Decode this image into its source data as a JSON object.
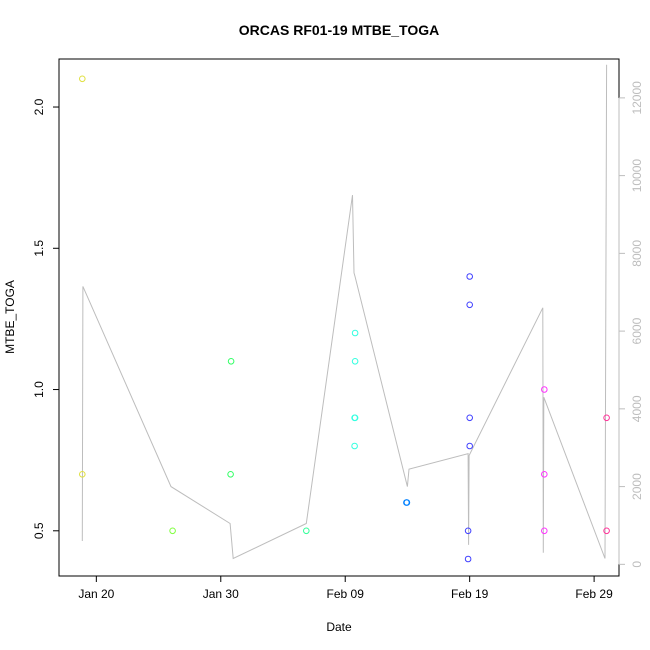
{
  "chart_data": {
    "type": "scatter",
    "title": "ORCAS RF01-19 MTBE_TOGA",
    "xlabel": "Date",
    "ylabel": "MTBE_TOGA",
    "xlim": [
      "2016-01-17",
      "2016-03-02"
    ],
    "ylim": [
      0.34,
      2.17
    ],
    "x_ticks": [
      {
        "date": "2016-01-20",
        "label": "Jan 20"
      },
      {
        "date": "2016-01-30",
        "label": "Jan 30"
      },
      {
        "date": "2016-02-09",
        "label": "Feb 09"
      },
      {
        "date": "2016-02-19",
        "label": "Feb 19"
      },
      {
        "date": "2016-02-29",
        "label": "Feb 29"
      }
    ],
    "y_ticks": [
      0.5,
      1.0,
      1.5,
      2.0
    ],
    "y_tick_labels": [
      "0.5",
      "1.0",
      "1.5",
      "2.0"
    ],
    "y2_lim": [
      -300,
      13000
    ],
    "y2_ticks": [
      0,
      2000,
      4000,
      6000,
      8000,
      10000,
      12000
    ],
    "y2_tick_labels": [
      "0",
      "2000",
      "4000",
      "6000",
      "8000",
      "10000",
      "12000"
    ],
    "grid": false,
    "colors": {
      "line": "#bdbdbd",
      "axis": "#000000",
      "right_axis": "#bdbdbd"
    },
    "points": [
      {
        "x": "2016-01-18T21:00",
        "y": 2.1,
        "color": "#e0e040"
      },
      {
        "x": "2016-01-18T21:00",
        "y": 0.7,
        "color": "#e0e040"
      },
      {
        "x": "2016-01-26T03:00",
        "y": 0.5,
        "color": "#80ff40"
      },
      {
        "x": "2016-01-30T20:00",
        "y": 1.1,
        "color": "#33ff66"
      },
      {
        "x": "2016-01-30T19:00",
        "y": 0.7,
        "color": "#33ff66"
      },
      {
        "x": "2016-02-05T21:00",
        "y": 0.5,
        "color": "#33ff99"
      },
      {
        "x": "2016-02-09T19:00",
        "y": 1.2,
        "color": "#33ffe0"
      },
      {
        "x": "2016-02-09T19:00",
        "y": 1.1,
        "color": "#33ffe0"
      },
      {
        "x": "2016-02-09T19:00",
        "y": 0.9,
        "color": "#33ffe0"
      },
      {
        "x": "2016-02-09T18:00",
        "y": 0.9,
        "color": "#33ffe0"
      },
      {
        "x": "2016-02-09T18:00",
        "y": 0.8,
        "color": "#33ffe0"
      },
      {
        "x": "2016-02-13T23:00",
        "y": 0.6,
        "color": "#0080ff"
      },
      {
        "x": "2016-02-13T22:00",
        "y": 0.6,
        "color": "#0080ff"
      },
      {
        "x": "2016-02-19T00:00",
        "y": 1.4,
        "color": "#4040ff"
      },
      {
        "x": "2016-02-19T00:00",
        "y": 1.3,
        "color": "#4040ff"
      },
      {
        "x": "2016-02-19T00:00",
        "y": 0.9,
        "color": "#4040ff"
      },
      {
        "x": "2016-02-19T00:00",
        "y": 0.8,
        "color": "#4040ff"
      },
      {
        "x": "2016-02-18T21:00",
        "y": 0.5,
        "color": "#4040ff"
      },
      {
        "x": "2016-02-18T21:00",
        "y": 0.4,
        "color": "#4040ff"
      },
      {
        "x": "2016-02-25T00:00",
        "y": 1.0,
        "color": "#ff33ff"
      },
      {
        "x": "2016-02-25T00:00",
        "y": 0.7,
        "color": "#ff33ff"
      },
      {
        "x": "2016-02-25T00:00",
        "y": 0.5,
        "color": "#ff33ff"
      },
      {
        "x": "2016-03-01T00:00",
        "y": 0.9,
        "color": "#ff3399"
      },
      {
        "x": "2016-03-01T00:00",
        "y": 0.5,
        "color": "#ff3399"
      }
    ],
    "line_series": [
      {
        "x": "2016-01-18T21:00",
        "y2": 600
      },
      {
        "x": "2016-01-18T22:00",
        "y2": 7150
      },
      {
        "x": "2016-01-26T00:00",
        "y2": 2000
      },
      {
        "x": "2016-01-30T18:00",
        "y2": 1050
      },
      {
        "x": "2016-01-31T00:00",
        "y2": 150
      },
      {
        "x": "2016-02-05T21:00",
        "y2": 1050
      },
      {
        "x": "2016-02-09T14:00",
        "y2": 9500
      },
      {
        "x": "2016-02-09T17:00",
        "y2": 7500
      },
      {
        "x": "2016-02-09T19:00",
        "y2": 7400
      },
      {
        "x": "2016-02-14T00:00",
        "y2": 2000
      },
      {
        "x": "2016-02-14T03:00",
        "y2": 2450
      },
      {
        "x": "2016-02-18T21:00",
        "y2": 2850
      },
      {
        "x": "2016-02-18T22:00",
        "y2": 500
      },
      {
        "x": "2016-02-18T23:00",
        "y2": 2800
      },
      {
        "x": "2016-02-24T21:00",
        "y2": 6600
      },
      {
        "x": "2016-02-24T22:00",
        "y2": 300
      },
      {
        "x": "2016-02-24T23:00",
        "y2": 4300
      },
      {
        "x": "2016-02-29T21:00",
        "y2": 150
      },
      {
        "x": "2016-03-01T00:00",
        "y2": 12850
      }
    ]
  }
}
